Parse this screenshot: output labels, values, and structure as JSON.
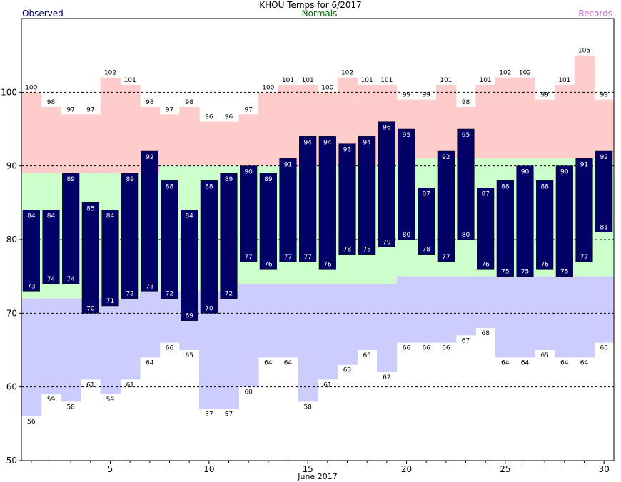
{
  "title": "KHOU Temps for 6/2017",
  "legend": {
    "observed": "Observed",
    "normals": "Normals",
    "records": "Records"
  },
  "colors": {
    "observed_bar": "#000066",
    "observed_label": "#ffffff",
    "record_band": "#ffcccc",
    "normal_band": "#ccffcc",
    "record_low_band": "#ccccff",
    "observed_text": "#000066",
    "normals_text": "#006600",
    "records_text": "#cc66cc",
    "gridline": "#000000"
  },
  "chart_data": {
    "type": "bar",
    "xlabel": "June 2017",
    "ylabel": "",
    "ylim": [
      50,
      110
    ],
    "yticks": [
      50,
      60,
      70,
      80,
      90,
      100
    ],
    "xticks": [
      5,
      10,
      15,
      20,
      25,
      30
    ],
    "grid": "dashed horizontal at 60, 70, 80, 90, 100",
    "days": [
      1,
      2,
      3,
      4,
      5,
      6,
      7,
      8,
      9,
      10,
      11,
      12,
      13,
      14,
      15,
      16,
      17,
      18,
      19,
      20,
      21,
      22,
      23,
      24,
      25,
      26,
      27,
      28,
      29,
      30
    ],
    "observed_high": [
      84,
      84,
      89,
      85,
      84,
      89,
      92,
      88,
      84,
      88,
      89,
      90,
      89,
      91,
      94,
      94,
      93,
      94,
      96,
      95,
      87,
      92,
      95,
      87,
      88,
      90,
      88,
      90,
      91,
      92
    ],
    "observed_low": [
      73,
      74,
      74,
      70,
      71,
      72,
      73,
      72,
      69,
      70,
      72,
      77,
      76,
      77,
      77,
      76,
      78,
      78,
      79,
      80,
      78,
      77,
      80,
      76,
      75,
      75,
      76,
      75,
      77,
      81
    ],
    "normal_high": [
      89,
      89,
      89,
      89,
      89,
      89,
      89,
      90,
      90,
      90,
      90,
      90,
      90,
      90,
      90,
      90,
      90,
      90,
      90,
      91,
      91,
      91,
      91,
      91,
      91,
      91,
      91,
      91,
      91,
      91
    ],
    "normal_low": [
      72,
      72,
      72,
      72,
      72,
      72,
      73,
      73,
      73,
      73,
      73,
      74,
      74,
      74,
      74,
      74,
      74,
      74,
      74,
      75,
      75,
      75,
      75,
      75,
      75,
      75,
      75,
      75,
      75,
      75
    ],
    "record_high": [
      100,
      98,
      97,
      97,
      102,
      101,
      98,
      97,
      98,
      96,
      96,
      97,
      100,
      101,
      101,
      100,
      102,
      101,
      101,
      99,
      99,
      101,
      98,
      101,
      102,
      102,
      99,
      101,
      105,
      99
    ],
    "record_low": [
      56,
      59,
      58,
      61,
      59,
      61,
      64,
      66,
      65,
      57,
      57,
      60,
      64,
      64,
      58,
      61,
      63,
      65,
      62,
      66,
      66,
      66,
      67,
      68,
      64,
      64,
      65,
      64,
      64,
      66
    ],
    "record_high_labels": [
      "100",
      "98",
      "97",
      "97",
      "102",
      "101",
      "98",
      "97",
      "98",
      "96",
      "96",
      "97",
      "100",
      "101",
      "101",
      "100",
      "102",
      "101",
      "101",
      "99",
      "99",
      "101",
      "98",
      "101",
      "102",
      "102",
      "99",
      "101",
      "105",
      "99"
    ],
    "record_low_labels": [
      "56",
      "59",
      "58",
      "61",
      "59",
      "61",
      "64",
      "66",
      "65",
      "57",
      "57",
      "60",
      "64",
      "64",
      "58",
      "61",
      "63",
      "65",
      "62",
      "66",
      "66",
      "66",
      "67",
      "68",
      "64",
      "64",
      "65",
      "64",
      "64",
      "66"
    ],
    "observed_high_labels": [
      "84",
      "84",
      "89",
      "85",
      "84",
      "89",
      "92",
      "88",
      "84",
      "88",
      "89",
      "90",
      "89",
      "91",
      "94",
      "94",
      "93",
      "94",
      "96",
      "95",
      "87",
      "92",
      "95",
      "87",
      "88",
      "90",
      "88",
      "90",
      "91",
      "92"
    ],
    "observed_low_labels": [
      "73",
      "74",
      "74",
      "70",
      "71",
      "72",
      "73",
      "72",
      "69",
      "70",
      "72",
      "77",
      "76",
      "77",
      "77",
      "76",
      "78",
      "78",
      "79",
      "80",
      "78",
      "77",
      "80",
      "76",
      "75",
      "75",
      "76",
      "75",
      "77",
      "81"
    ],
    "ytick_labels": [
      "50",
      "60",
      "70",
      "80",
      "90",
      "100"
    ],
    "xtick_labels": [
      "5",
      "10",
      "15",
      "20",
      "25",
      "30"
    ]
  }
}
